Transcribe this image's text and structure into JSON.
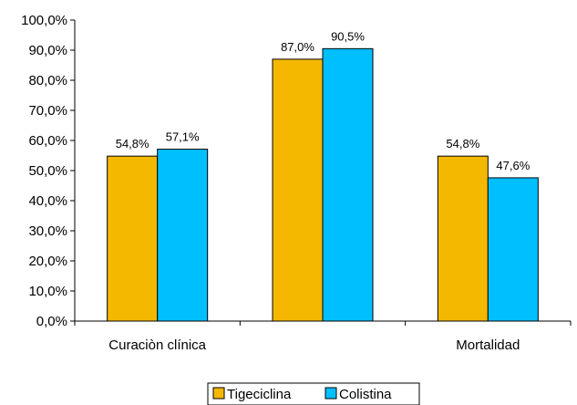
{
  "chart_data": {
    "type": "bar",
    "title": "",
    "xlabel": "",
    "ylabel": "",
    "ylim": [
      0,
      100
    ],
    "ytick_values": [
      0,
      10,
      20,
      30,
      40,
      50,
      60,
      70,
      80,
      90,
      100
    ],
    "ytick_labels": [
      "0,0%",
      "10,0%",
      "20,0%",
      "30,0%",
      "40,0%",
      "50,0%",
      "60,0%",
      "70,0%",
      "80,0%",
      "90,0%",
      "100,0%"
    ],
    "categories": [
      "Curaciòn clínica",
      "",
      "Mortalidad"
    ],
    "series": [
      {
        "name": "Tigeciclina",
        "color": "#F5B800",
        "values": [
          54.8,
          87.0,
          54.8
        ],
        "labels": [
          "54,8%",
          "87,0%",
          "54,8%"
        ]
      },
      {
        "name": "Colistina",
        "color": "#00BFFF",
        "values": [
          57.1,
          90.5,
          47.6
        ],
        "labels": [
          "57,1%",
          "90,5%",
          "47,6%"
        ]
      }
    ],
    "grid": false,
    "legend_position": "bottom-center"
  }
}
